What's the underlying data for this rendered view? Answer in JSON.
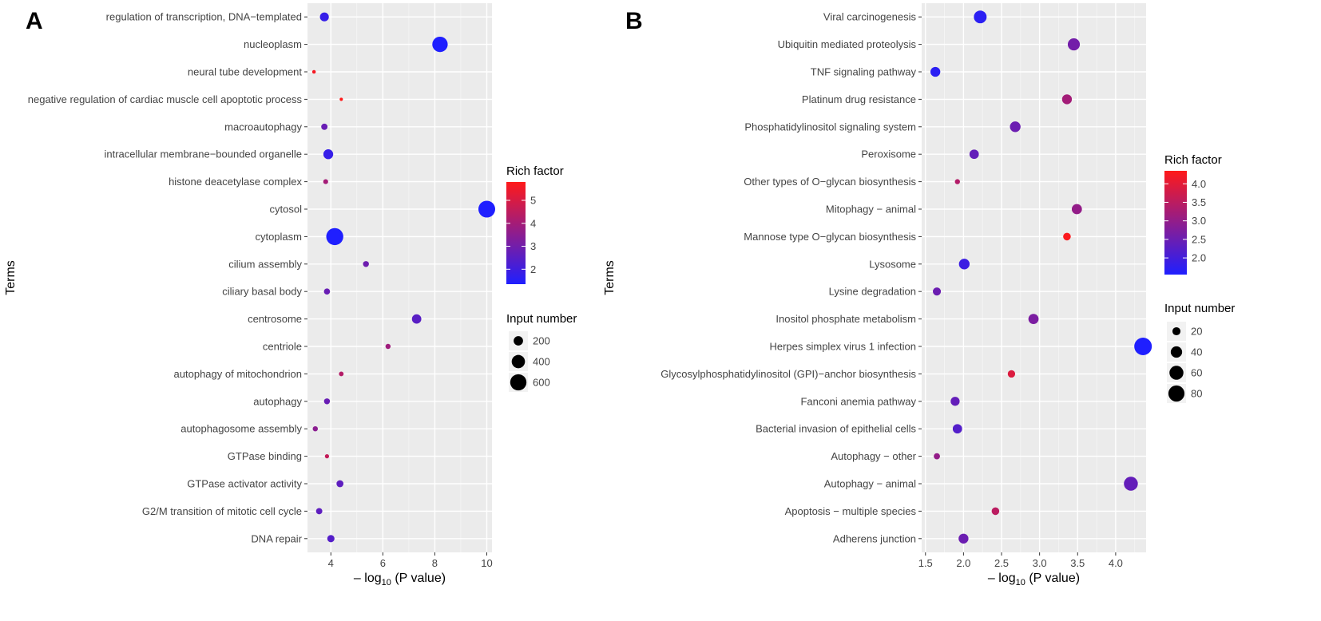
{
  "chart_data": [
    {
      "type": "scatter",
      "panel_label": "A",
      "xlabel_prefix": "– log",
      "xlabel_sub": "10",
      "xlabel_suffix": " (P value)",
      "ylabel": "Terms",
      "xlim": [
        3.1,
        10.2
      ],
      "x_ticks": [
        4,
        6,
        8,
        10
      ],
      "grid": true,
      "color_legend": {
        "title": "Rich factor",
        "min": 1.35,
        "max": 5.8,
        "ticks": [
          2,
          3,
          4,
          5
        ],
        "low_color": "#1f1fff",
        "high_color": "#ff1a1a"
      },
      "size_legend": {
        "title": "Input number",
        "ticks": [
          200,
          400,
          600
        ],
        "max_value": 700
      },
      "terms": [
        {
          "label": "regulation of transcription, DNA−templated",
          "x": 3.75,
          "rich": 1.8,
          "size": 180
        },
        {
          "label": "nucleoplasm",
          "x": 8.2,
          "rich": 1.3,
          "size": 540
        },
        {
          "label": "neural tube development",
          "x": 3.35,
          "rich": 5.6,
          "size": 30
        },
        {
          "label": "negative regulation of cardiac muscle cell apoptotic process",
          "x": 4.4,
          "rich": 5.8,
          "size": 25
        },
        {
          "label": "macroautophagy",
          "x": 3.75,
          "rich": 2.8,
          "size": 90
        },
        {
          "label": "intracellular membrane−bounded organelle",
          "x": 3.9,
          "rich": 1.8,
          "size": 220
        },
        {
          "label": "histone deacetylase complex",
          "x": 3.8,
          "rich": 4.0,
          "size": 55
        },
        {
          "label": "cytosol",
          "x": 10.0,
          "rich": 1.25,
          "size": 640
        },
        {
          "label": "cytoplasm",
          "x": 4.15,
          "rich": 1.15,
          "size": 660
        },
        {
          "label": "cilium assembly",
          "x": 5.35,
          "rich": 2.9,
          "size": 80
        },
        {
          "label": "ciliary basal body",
          "x": 3.85,
          "rich": 2.8,
          "size": 85
        },
        {
          "label": "centrosome",
          "x": 7.3,
          "rich": 2.5,
          "size": 200
        },
        {
          "label": "centriole",
          "x": 6.2,
          "rich": 3.9,
          "size": 60
        },
        {
          "label": "autophagy of mitochondrion",
          "x": 4.4,
          "rich": 4.3,
          "size": 50
        },
        {
          "label": "autophagy",
          "x": 3.85,
          "rich": 2.8,
          "size": 80
        },
        {
          "label": "autophagosome assembly",
          "x": 3.4,
          "rich": 3.5,
          "size": 60
        },
        {
          "label": "GTPase binding",
          "x": 3.85,
          "rich": 4.6,
          "size": 40
        },
        {
          "label": "GTPase activator activity",
          "x": 4.35,
          "rich": 2.6,
          "size": 110
        },
        {
          "label": "G2/M transition of mitotic cell cycle",
          "x": 3.55,
          "rich": 2.6,
          "size": 90
        },
        {
          "label": "DNA repair",
          "x": 4.0,
          "rich": 2.4,
          "size": 120
        }
      ]
    },
    {
      "type": "scatter",
      "panel_label": "B",
      "xlabel_prefix": "– log",
      "xlabel_sub": "10",
      "xlabel_suffix": " (P value)",
      "ylabel": "Terms",
      "xlim": [
        1.45,
        4.4
      ],
      "x_ticks": [
        1.5,
        2.0,
        2.5,
        3.0,
        3.5,
        4.0
      ],
      "x_tick_labels": [
        "1.5",
        "2.0",
        "2.5",
        "3.0",
        "3.5",
        "4.0"
      ],
      "grid": true,
      "color_legend": {
        "title": "Rich factor",
        "min": 1.55,
        "max": 4.35,
        "ticks": [
          2.0,
          2.5,
          3.0,
          3.5,
          4.0
        ],
        "tick_labels": [
          "2.0",
          "2.5",
          "3.0",
          "3.5",
          "4.0"
        ],
        "low_color": "#1f1fff",
        "high_color": "#ff1a1a"
      },
      "size_legend": {
        "title": "Input number",
        "ticks": [
          20,
          40,
          60,
          80
        ],
        "max_value": 95
      },
      "terms": [
        {
          "label": "Viral carcinogenesis",
          "x": 2.22,
          "rich": 1.7,
          "size": 50
        },
        {
          "label": "Ubiquitin mediated proteolysis",
          "x": 3.45,
          "rich": 2.6,
          "size": 45
        },
        {
          "label": "TNF signaling pathway",
          "x": 1.63,
          "rich": 1.7,
          "size": 30
        },
        {
          "label": "Platinum drug resistance",
          "x": 3.36,
          "rich": 3.2,
          "size": 30
        },
        {
          "label": "Phosphatidylinositol signaling system",
          "x": 2.68,
          "rich": 2.5,
          "size": 35
        },
        {
          "label": "Peroxisome",
          "x": 2.14,
          "rich": 2.4,
          "size": 27
        },
        {
          "label": "Other types of O−glycan biosynthesis",
          "x": 1.92,
          "rich": 3.4,
          "size": 8
        },
        {
          "label": "Mitophagy − animal",
          "x": 3.49,
          "rich": 3.0,
          "size": 32
        },
        {
          "label": "Mannose type O−glycan biosynthesis",
          "x": 3.36,
          "rich": 4.3,
          "size": 18
        },
        {
          "label": "Lysosome",
          "x": 2.01,
          "rich": 1.9,
          "size": 35
        },
        {
          "label": "Lysine degradation",
          "x": 1.65,
          "rich": 2.5,
          "size": 20
        },
        {
          "label": "Inositol phosphate metabolism",
          "x": 2.92,
          "rich": 2.7,
          "size": 32
        },
        {
          "label": "Herpes simplex virus 1 infection",
          "x": 4.36,
          "rich": 1.55,
          "size": 95
        },
        {
          "label": "Glycosylphosphatidylinositol (GPI)−anchor biosynthesis",
          "x": 2.63,
          "rich": 3.9,
          "size": 17
        },
        {
          "label": "Fanconi anemia pathway",
          "x": 1.89,
          "rich": 2.4,
          "size": 25
        },
        {
          "label": "Bacterial invasion of epithelial cells",
          "x": 1.92,
          "rich": 2.2,
          "size": 27
        },
        {
          "label": "Autophagy − other",
          "x": 1.65,
          "rich": 3.0,
          "size": 12
        },
        {
          "label": "Autophagy − animal",
          "x": 4.2,
          "rich": 2.4,
          "size": 60
        },
        {
          "label": "Apoptosis − multiple species",
          "x": 2.42,
          "rich": 3.5,
          "size": 18
        },
        {
          "label": "Adherens junction",
          "x": 2.0,
          "rich": 2.5,
          "size": 30
        }
      ]
    }
  ]
}
